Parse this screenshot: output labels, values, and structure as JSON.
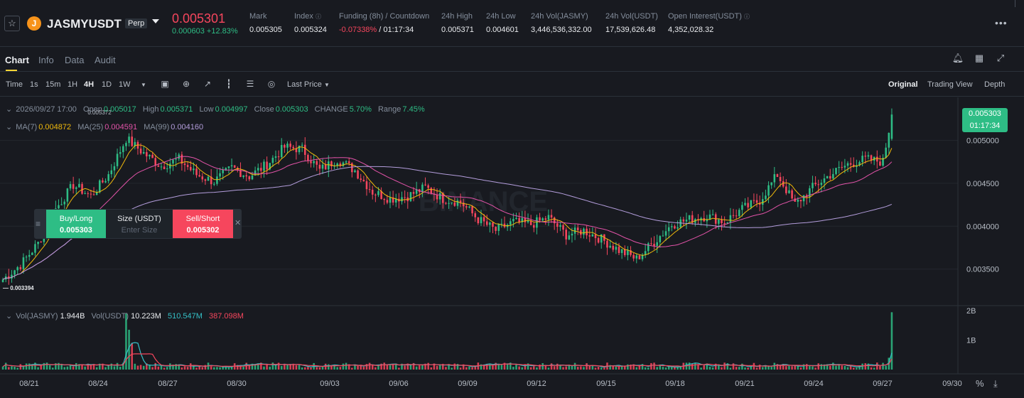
{
  "header": {
    "symbol": "JASMYUSDT",
    "badge": "Perp",
    "last_price": "0.005301",
    "change": "0.000603 +12.83%",
    "mark_label": "Mark",
    "mark_value": "0.005305",
    "index_label": "Index",
    "index_value": "0.005324",
    "funding_label": "Funding (8h) / Countdown",
    "funding_rate": "-0.07338%",
    "countdown": "/ 01:17:34",
    "high_label": "24h High",
    "high_value": "0.005371",
    "low_label": "24h Low",
    "low_value": "0.004601",
    "vol_jasmy_label": "24h Vol(JASMY)",
    "vol_jasmy_value": "3,446,536,332.00",
    "vol_usdt_label": "24h Vol(USDT)",
    "vol_usdt_value": "17,539,626.48",
    "oi_label": "Open Interest(USDT)",
    "oi_value": "4,352,028.32"
  },
  "tabs": [
    "Chart",
    "Info",
    "Data",
    "Audit"
  ],
  "toolbar": {
    "intervals": [
      "Time",
      "1s",
      "15m",
      "1H",
      "4H",
      "1D",
      "1W"
    ],
    "active_interval": "4H",
    "price_type": "Last Price",
    "views": [
      "Original",
      "Trading View",
      "Depth"
    ],
    "active_view": "Original"
  },
  "legend": {
    "date": "2026/09/27 17:00",
    "open_label": "Open",
    "open": "0.005017",
    "high_label": "High",
    "high": "0.005371",
    "low_label": "Low",
    "low": "0.004997",
    "close_label": "Close",
    "close": "0.005303",
    "change_label": "CHANGE",
    "change": "5.70%",
    "range_label": "Range",
    "range": "7.45%",
    "ma7_label": "MA(7)",
    "ma7": "0.004872",
    "ma25_label": "MA(25)",
    "ma25": "0.004591",
    "ma99_label": "MA(99)",
    "ma99": "0.004160"
  },
  "volume_legend": {
    "vol_jasmy_label": "Vol(JASMY)",
    "vol_jasmy": "1.944B",
    "vol_usdt_label": "Vol(USDT)",
    "vol_usdt": "10.223M",
    "ma1": "510.547M",
    "ma2": "387.098M"
  },
  "price_tag": {
    "price": "0.005303",
    "countdown": "01:17:34"
  },
  "order_panel": {
    "buy_label": "Buy/Long",
    "buy_price": "0.005303",
    "size_label": "Size (USDT)",
    "size_placeholder": "Enter Size",
    "sell_label": "Sell/Short",
    "sell_price": "0.005302"
  },
  "watermark": "BINANCE",
  "colors": {
    "up": "#2ebd85",
    "down": "#f6465d",
    "ma7": "#f0b90b",
    "ma25": "#e253a8",
    "ma99": "#b39ddb",
    "accent": "#fcd535"
  },
  "chart_data": {
    "type": "candlestick",
    "interval": "4H",
    "y_axis_ticks": [
      "0.005000",
      "0.004500",
      "0.004000",
      "0.003500"
    ],
    "y_range": [
      0.0031,
      0.0055
    ],
    "high_marker": "0.005372",
    "low_marker": "0.003394",
    "x_ticks": [
      "08/21",
      "08/24",
      "08/27",
      "08/30",
      "09/03",
      "09/06",
      "09/09",
      "09/12",
      "09/15",
      "09/18",
      "09/21",
      "09/24",
      "09/27",
      "09/30"
    ],
    "volume_axis_ticks": [
      "2B",
      "1B"
    ],
    "volume_range": [
      0,
      2000000000
    ],
    "close_anchors": [
      [
        0,
        0.00338
      ],
      [
        6,
        0.00355
      ],
      [
        12,
        0.0038
      ],
      [
        18,
        0.0042
      ],
      [
        24,
        0.00448
      ],
      [
        30,
        0.00435
      ],
      [
        36,
        0.0046
      ],
      [
        42,
        0.00502
      ],
      [
        48,
        0.00485
      ],
      [
        54,
        0.0047
      ],
      [
        60,
        0.00478
      ],
      [
        66,
        0.0046
      ],
      [
        72,
        0.00452
      ],
      [
        78,
        0.00468
      ],
      [
        84,
        0.00458
      ],
      [
        90,
        0.00472
      ],
      [
        96,
        0.00492
      ],
      [
        102,
        0.0049
      ],
      [
        108,
        0.00465
      ],
      [
        114,
        0.00478
      ],
      [
        120,
        0.00465
      ],
      [
        126,
        0.0044
      ],
      [
        132,
        0.00432
      ],
      [
        138,
        0.00435
      ],
      [
        144,
        0.00445
      ],
      [
        150,
        0.00432
      ],
      [
        156,
        0.00428
      ],
      [
        162,
        0.00408
      ],
      [
        168,
        0.00395
      ],
      [
        174,
        0.00405
      ],
      [
        180,
        0.00402
      ],
      [
        186,
        0.0041
      ],
      [
        192,
        0.0039
      ],
      [
        198,
        0.00395
      ],
      [
        204,
        0.00385
      ],
      [
        210,
        0.00372
      ],
      [
        216,
        0.00362
      ],
      [
        222,
        0.00382
      ],
      [
        228,
        0.00402
      ],
      [
        234,
        0.00408
      ],
      [
        240,
        0.00412
      ],
      [
        246,
        0.00405
      ],
      [
        252,
        0.0042
      ],
      [
        258,
        0.0043
      ],
      [
        264,
        0.0046
      ],
      [
        270,
        0.00425
      ],
      [
        276,
        0.00445
      ],
      [
        282,
        0.0046
      ],
      [
        288,
        0.00472
      ],
      [
        294,
        0.00478
      ],
      [
        300,
        0.00475
      ],
      [
        303,
        0.0053
      ]
    ],
    "volume_spikes": [
      [
        42,
        1900000000
      ],
      [
        43,
        1350000000
      ],
      [
        44,
        900000000
      ],
      [
        303,
        1944000000
      ],
      [
        302,
        400000000
      ]
    ]
  }
}
